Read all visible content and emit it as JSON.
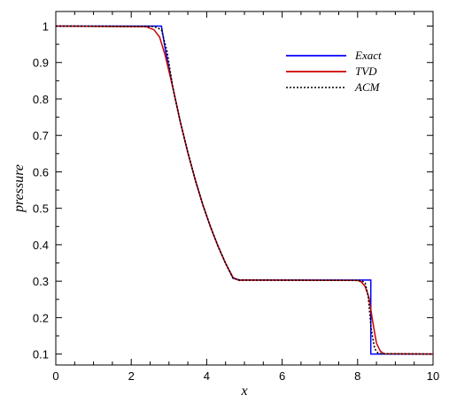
{
  "chart_data": {
    "type": "line",
    "title": "",
    "xlabel": "x",
    "ylabel": "pressure",
    "xlim": [
      0,
      10
    ],
    "ylim": [
      0.07,
      1.04
    ],
    "x_ticks": [
      0,
      2,
      4,
      6,
      8,
      10
    ],
    "y_ticks": [
      0.1,
      0.2,
      0.3,
      0.4,
      0.5,
      0.6,
      0.7,
      0.8,
      0.9,
      1
    ],
    "grid": false,
    "legend_position": "top-right",
    "series": [
      {
        "name": "Exact",
        "color": "#0000ff",
        "style": "solid",
        "x": [
          0,
          2.8,
          2.9,
          3.1,
          3.3,
          3.5,
          3.7,
          3.9,
          4.1,
          4.3,
          4.5,
          4.7,
          4.88,
          8.35,
          8.35,
          10
        ],
        "y": [
          1.0,
          1.0,
          0.938,
          0.832,
          0.737,
          0.653,
          0.577,
          0.509,
          0.449,
          0.396,
          0.349,
          0.308,
          0.303,
          0.303,
          0.1,
          0.1
        ]
      },
      {
        "name": "TVD",
        "color": "#cc0000",
        "style": "solid",
        "x": [
          0,
          2.4,
          2.6,
          2.75,
          2.9,
          3.1,
          3.3,
          3.5,
          3.7,
          3.9,
          4.1,
          4.3,
          4.5,
          4.7,
          4.85,
          5.0,
          8.0,
          8.1,
          8.2,
          8.3,
          8.4,
          8.5,
          8.6,
          8.7,
          10
        ],
        "y": [
          1.0,
          0.998,
          0.99,
          0.97,
          0.92,
          0.832,
          0.737,
          0.653,
          0.577,
          0.509,
          0.449,
          0.396,
          0.349,
          0.31,
          0.302,
          0.303,
          0.302,
          0.298,
          0.285,
          0.255,
          0.19,
          0.13,
          0.108,
          0.101,
          0.1
        ]
      },
      {
        "name": "ACM",
        "color": "#000000",
        "style": "dotted",
        "x": [
          0,
          2.6,
          2.8,
          2.95,
          3.1,
          3.3,
          3.5,
          3.7,
          3.9,
          4.1,
          4.3,
          4.5,
          4.7,
          4.88,
          5.0,
          8.1,
          8.2,
          8.28,
          8.36,
          8.45,
          8.55,
          10
        ],
        "y": [
          1.0,
          0.999,
          0.99,
          0.93,
          0.832,
          0.737,
          0.653,
          0.577,
          0.509,
          0.449,
          0.396,
          0.349,
          0.308,
          0.303,
          0.303,
          0.302,
          0.295,
          0.26,
          0.17,
          0.115,
          0.101,
          0.1
        ]
      }
    ]
  }
}
